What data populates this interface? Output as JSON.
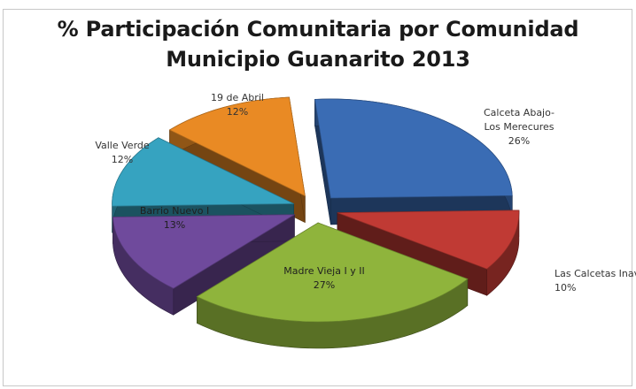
{
  "chart_data": {
    "type": "pie",
    "variant": "exploded-3d",
    "title_lines": [
      "% Participación Comunitaria por Comunidad",
      "Municipio Guanarito 2013"
    ],
    "slices": [
      {
        "label_lines": [
          "Calceta Abajo-",
          "Los Merecures"
        ],
        "pct_label": "26%",
        "value": 26,
        "color": "#3a6cb4",
        "label_color": "#333333"
      },
      {
        "label_lines": [
          "Las Calcetas Inavi"
        ],
        "pct_label": "10%",
        "value": 10,
        "color": "#c03a34",
        "label_color": "#333333"
      },
      {
        "label_lines": [
          "Madre Vieja I y II"
        ],
        "pct_label": "27%",
        "value": 27,
        "color": "#8fb43c",
        "label_color": "#1f1f1f"
      },
      {
        "label_lines": [
          "Barrio Nuevo  I"
        ],
        "pct_label": "13%",
        "value": 13,
        "color": "#6f4a9c",
        "label_color": "#1f1f1f"
      },
      {
        "label_lines": [
          "Valle Verde"
        ],
        "pct_label": "12%",
        "value": 12,
        "color": "#36a3c0",
        "label_color": "#333333"
      },
      {
        "label_lines": [
          "19 de Abril"
        ],
        "pct_label": "12%",
        "value": 12,
        "color": "#e98a24",
        "label_color": "#333333"
      }
    ]
  }
}
